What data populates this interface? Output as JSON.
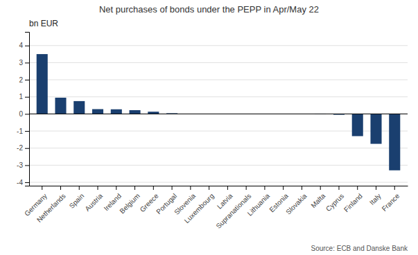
{
  "chart_data": {
    "type": "bar",
    "title": "Net purchases of bonds under the PEPP in Apr/May 22",
    "ylabel": "bn EUR",
    "annotation": "Source: ECB and Danske Bank",
    "categories": [
      "Germany",
      "Netherlands",
      "Spain",
      "Austria",
      "Ireland",
      "Belgium",
      "Greece",
      "Portugal",
      "Slovenia",
      "Luxembourg",
      "Latvia",
      "Supranationals",
      "Lithuania",
      "Estonia",
      "Slovakia",
      "Malta",
      "Cyprus",
      "Finland",
      "Italy",
      "France"
    ],
    "values": [
      3.5,
      0.95,
      0.75,
      0.28,
      0.27,
      0.22,
      0.13,
      0.04,
      0.0,
      0.0,
      0.0,
      0.0,
      0.0,
      0.0,
      0.0,
      -0.02,
      -0.05,
      -1.3,
      -1.75,
      -3.3
    ],
    "color": "#1a3f6f",
    "ylim": [
      -4.2,
      4.8
    ],
    "yticks": [
      -4,
      -3,
      -2,
      -1,
      0,
      1,
      2,
      3,
      4
    ],
    "grid": true
  }
}
